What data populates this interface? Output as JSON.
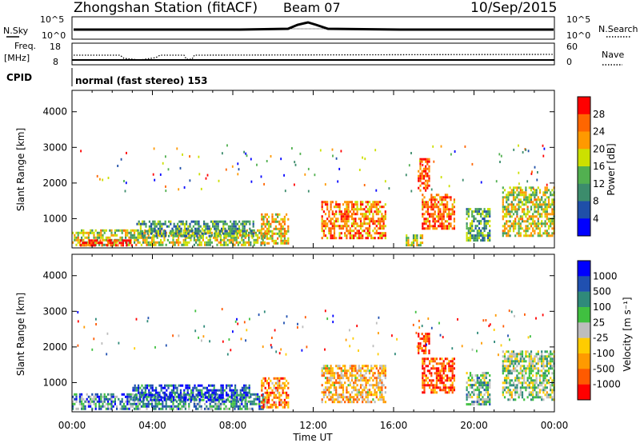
{
  "header": {
    "station": "Zhongshan Station (fitACF)",
    "beam": "Beam 07",
    "date": "10/Sep/2015"
  },
  "summary_panels": {
    "nsky_label": "N.Sky",
    "nsky_ticks": [
      "10^5",
      "10^0"
    ],
    "nsearch_label": "N.Search",
    "nsearch_ticks": [
      "10^5",
      "10^0"
    ],
    "freq_label": "Freq.",
    "freq_unit": "[MHz]",
    "freq_ticks": [
      "18",
      "8"
    ],
    "nave_label": "Nave",
    "nave_ticks": [
      "60",
      "0"
    ],
    "cpid_label": "CPID",
    "cpid_text": "normal (fast stereo) 153"
  },
  "colors": {
    "power_scale": [
      "#0000ff",
      "#1f4fa8",
      "#3c8c6c",
      "#52b050",
      "#cce000",
      "#ff9900",
      "#ff6600",
      "#ff0000"
    ],
    "velocity_scale": [
      "#ff0000",
      "#ff5a00",
      "#ff9a00",
      "#ffcc00",
      "#bdbdbd",
      "#40c040",
      "#2f8a7a",
      "#2050b0",
      "#0000ff"
    ]
  },
  "chart_data": [
    {
      "type": "heatmap",
      "title": "",
      "xlabel": "",
      "ylabel": "Slant Range [km]",
      "xlim": [
        0,
        24
      ],
      "ylim": [
        180,
        4600
      ],
      "x_tick_labels": [
        "00:00",
        "04:00",
        "08:00",
        "12:00",
        "16:00",
        "20:00",
        "00:00"
      ],
      "y_tick_labels": [
        "1000",
        "2000",
        "3000",
        "4000"
      ],
      "y_ticks": [
        1000,
        2000,
        3000,
        4000
      ],
      "colorbar": {
        "label": "Power [dB]",
        "ticks": [
          "28",
          "24",
          "20",
          "16",
          "12",
          "8",
          "4"
        ],
        "range": [
          0,
          30
        ]
      },
      "echo_regions": [
        {
          "t0": 0.0,
          "t1": 9.6,
          "r0": 260,
          "r1": 700,
          "level": 0.55
        },
        {
          "t0": 0.4,
          "t1": 3.0,
          "r0": 280,
          "r1": 420,
          "level": 0.95
        },
        {
          "t0": 3.2,
          "t1": 9.0,
          "r0": 500,
          "r1": 950,
          "level": 0.35
        },
        {
          "t0": 9.4,
          "t1": 10.8,
          "r0": 280,
          "r1": 1150,
          "level": 0.6
        },
        {
          "t0": 12.4,
          "t1": 15.6,
          "r0": 480,
          "r1": 1500,
          "level": 0.75
        },
        {
          "t0": 16.6,
          "t1": 17.4,
          "r0": 280,
          "r1": 560,
          "level": 0.5
        },
        {
          "t0": 17.4,
          "t1": 19.0,
          "r0": 700,
          "r1": 1700,
          "level": 0.8
        },
        {
          "t0": 17.2,
          "t1": 17.8,
          "r0": 1800,
          "r1": 2700,
          "level": 0.85
        },
        {
          "t0": 19.6,
          "t1": 20.8,
          "r0": 400,
          "r1": 1300,
          "level": 0.4
        },
        {
          "t0": 21.4,
          "t1": 24.0,
          "r0": 500,
          "r1": 1900,
          "level": 0.55
        }
      ]
    },
    {
      "type": "heatmap",
      "title": "",
      "xlabel": "Time UT",
      "ylabel": "Slant Range [km]",
      "xlim": [
        0,
        24
      ],
      "ylim": [
        180,
        4600
      ],
      "x_tick_labels": [
        "00:00",
        "04:00",
        "08:00",
        "12:00",
        "16:00",
        "20:00",
        "00:00"
      ],
      "y_tick_labels": [
        "1000",
        "2000",
        "3000",
        "4000"
      ],
      "y_ticks": [
        1000,
        2000,
        3000,
        4000
      ],
      "colorbar": {
        "label": "Velocity [m s⁻¹]",
        "ticks": [
          "1000",
          "500",
          "100",
          "25",
          "-25",
          "-100",
          "-500",
          "-1000"
        ]
      },
      "echo_regions": [
        {
          "t0": 0.0,
          "t1": 9.6,
          "r0": 260,
          "r1": 700,
          "level": 0.7
        },
        {
          "t0": 3.0,
          "t1": 8.8,
          "r0": 500,
          "r1": 950,
          "level": 0.85
        },
        {
          "t0": 9.4,
          "t1": 10.8,
          "r0": 280,
          "r1": 1150,
          "level": 0.25
        },
        {
          "t0": 12.4,
          "t1": 15.6,
          "r0": 480,
          "r1": 1500,
          "level": 0.35
        },
        {
          "t0": 17.4,
          "t1": 19.0,
          "r0": 700,
          "r1": 1700,
          "level": 0.15
        },
        {
          "t0": 17.2,
          "t1": 17.8,
          "r0": 1800,
          "r1": 2400,
          "level": 0.1
        },
        {
          "t0": 19.6,
          "t1": 20.8,
          "r0": 400,
          "r1": 1300,
          "level": 0.6
        },
        {
          "t0": 21.4,
          "t1": 24.0,
          "r0": 500,
          "r1": 1900,
          "level": 0.55
        }
      ]
    }
  ]
}
